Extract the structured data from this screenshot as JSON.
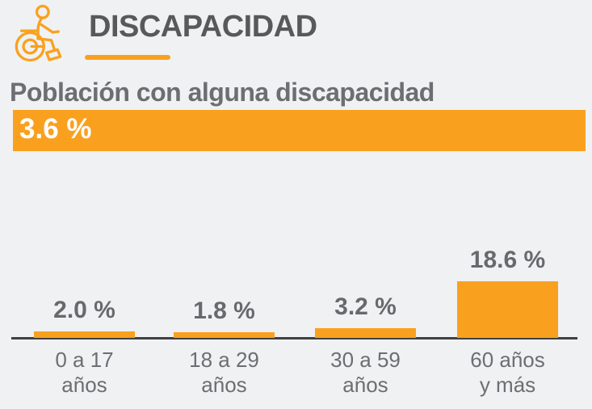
{
  "colors": {
    "background": "#f0f1f2",
    "accent": "#f9a11e",
    "title_gray": "#58595b",
    "text_gray": "#6d6e71",
    "value_gray": "#68696c",
    "axis": "#3f4042",
    "banner_text": "#ffffff"
  },
  "header": {
    "title": "DISCAPACIDAD",
    "icon": "wheelchair-icon"
  },
  "summary": {
    "label": "Población con alguna discapacidad",
    "value": "3.6 %"
  },
  "chart_data": {
    "type": "bar",
    "title": "Población con alguna discapacidad",
    "xlabel": "",
    "ylabel": "",
    "categories": [
      [
        "0 a 17",
        "años"
      ],
      [
        "18 a 29",
        "años"
      ],
      [
        "30 a 59",
        "años"
      ],
      [
        "60 años",
        "y más"
      ]
    ],
    "values": [
      2.0,
      1.8,
      3.2,
      18.6
    ],
    "value_labels": [
      "2.0 %",
      "1.8 %",
      "3.2 %",
      "18.6 %"
    ],
    "total_label": "3.6 %",
    "ylim": [
      0,
      20
    ],
    "bar_color": "#f9a11e",
    "grid": false,
    "legend": false,
    "baseline_axis": true
  }
}
